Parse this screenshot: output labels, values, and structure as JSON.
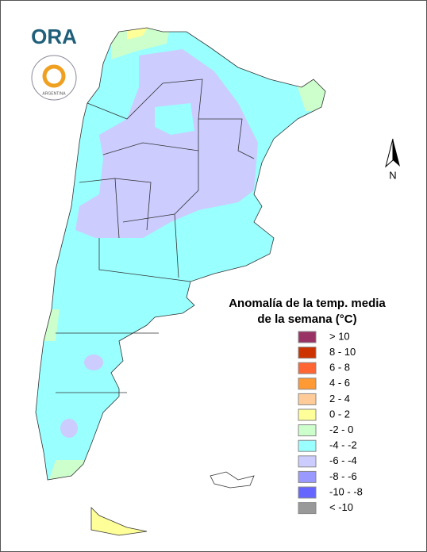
{
  "logo": {
    "brand": "ORA",
    "seal": "ARGENTINA"
  },
  "north_label": "N",
  "legend": {
    "title_lines": [
      "Anomalía de la temp. media",
      "de la semana (°C)"
    ],
    "items": [
      {
        "label": "> 10",
        "color": "#993366"
      },
      {
        "label": "8 - 10",
        "color": "#cc3300"
      },
      {
        "label": "6 - 8",
        "color": "#ff6633"
      },
      {
        "label": "4 - 6",
        "color": "#ff9933"
      },
      {
        "label": "2 - 4",
        "color": "#ffcc99"
      },
      {
        "label": "0 - 2",
        "color": "#ffff99"
      },
      {
        "label": "-2 - 0",
        "color": "#ccffcc"
      },
      {
        "label": "-4 - -2",
        "color": "#99ffff"
      },
      {
        "label": "-6 - -4",
        "color": "#ccccff"
      },
      {
        "label": "-8 - -6",
        "color": "#9999ff"
      },
      {
        "label": "-10 - -8",
        "color": "#6666ff"
      },
      {
        "label": "< -10",
        "color": "#999999"
      }
    ]
  }
}
